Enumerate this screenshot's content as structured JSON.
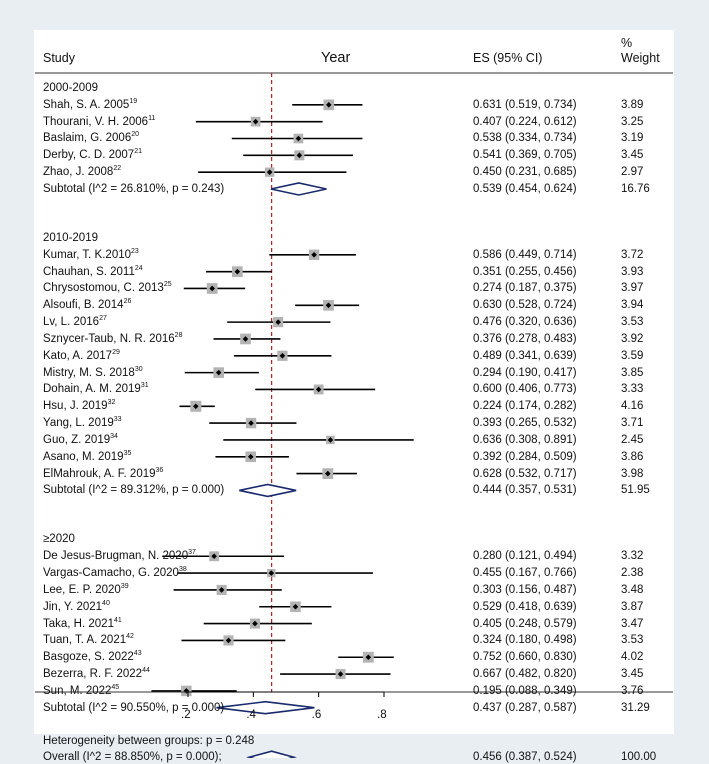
{
  "headers": {
    "study": "Study",
    "year": "Year",
    "es": "ES (95% CI)",
    "weight_line1": "%",
    "weight_line2": "Weight"
  },
  "axis": {
    "ticks": [
      0.2,
      0.4,
      0.6,
      0.8
    ],
    "tick_labels": [
      ".2",
      ".4",
      ".6",
      ".8"
    ],
    "reference_line": 0.456
  },
  "heterogeneity_between_groups": "Heterogeneity between groups: p = 0.248",
  "colors": {
    "background": "#e8eef2",
    "panel": "#ffffff",
    "diamond": "#1a2a6c",
    "dashed_line": "#b22222",
    "box": "#b3b3b3",
    "marker": "#000000"
  },
  "chart_data": {
    "type": "forest",
    "xlim": [
      0.15,
      0.92
    ],
    "pooled_estimate": 0.456,
    "groups": [
      {
        "label": "2000-2009",
        "studies": [
          {
            "name": "Shah, S. A. 2005",
            "ref": "19",
            "es": 0.631,
            "lo": 0.519,
            "hi": 0.734,
            "es_text": "0.631 (0.519, 0.734)",
            "weight": "3.89"
          },
          {
            "name": "Thourani, V. H. 2006",
            "ref": "11",
            "es": 0.407,
            "lo": 0.224,
            "hi": 0.612,
            "es_text": "0.407 (0.224, 0.612)",
            "weight": "3.25"
          },
          {
            "name": "Baslaim, G. 2006",
            "ref": "20",
            "es": 0.538,
            "lo": 0.334,
            "hi": 0.734,
            "es_text": "0.538 (0.334, 0.734)",
            "weight": "3.19"
          },
          {
            "name": "Derby, C. D. 2007",
            "ref": "21",
            "es": 0.541,
            "lo": 0.369,
            "hi": 0.705,
            "es_text": "0.541 (0.369, 0.705)",
            "weight": "3.45"
          },
          {
            "name": "Zhao, J. 2008",
            "ref": "22",
            "es": 0.45,
            "lo": 0.231,
            "hi": 0.685,
            "es_text": "0.450 (0.231, 0.685)",
            "weight": "2.97"
          }
        ],
        "subtotal": {
          "label": "Subtotal  (I^2 = 26.810%, p = 0.243)",
          "es": 0.539,
          "lo": 0.454,
          "hi": 0.624,
          "es_text": "0.539 (0.454, 0.624)",
          "weight": "16.76"
        }
      },
      {
        "label": "2010-2019",
        "studies": [
          {
            "name": "Kumar, T. K.2010",
            "ref": "23",
            "es": 0.586,
            "lo": 0.449,
            "hi": 0.714,
            "es_text": "0.586 (0.449, 0.714)",
            "weight": "3.72"
          },
          {
            "name": "Chauhan, S. 2011",
            "ref": "24",
            "es": 0.351,
            "lo": 0.255,
            "hi": 0.456,
            "es_text": "0.351 (0.255, 0.456)",
            "weight": "3.93"
          },
          {
            "name": "Chrysostomou, C. 2013",
            "ref": "25",
            "es": 0.274,
            "lo": 0.187,
            "hi": 0.375,
            "es_text": "0.274 (0.187, 0.375)",
            "weight": "3.97"
          },
          {
            "name": "Alsoufi, B. 2014",
            "ref": "26",
            "es": 0.63,
            "lo": 0.528,
            "hi": 0.724,
            "es_text": "0.630 (0.528, 0.724)",
            "weight": "3.94"
          },
          {
            "name": "Lv, L. 2016",
            "ref": "27",
            "es": 0.476,
            "lo": 0.32,
            "hi": 0.636,
            "es_text": "0.476 (0.320, 0.636)",
            "weight": "3.53"
          },
          {
            "name": "Sznycer-Taub, N. R. 2016",
            "ref": "28",
            "es": 0.376,
            "lo": 0.278,
            "hi": 0.483,
            "es_text": "0.376 (0.278, 0.483)",
            "weight": "3.92"
          },
          {
            "name": "Kato, A. 2017",
            "ref": "29",
            "es": 0.489,
            "lo": 0.341,
            "hi": 0.639,
            "es_text": "0.489 (0.341, 0.639)",
            "weight": "3.59"
          },
          {
            "name": "Mistry, M. S. 2018",
            "ref": "30",
            "es": 0.294,
            "lo": 0.19,
            "hi": 0.417,
            "es_text": "0.294 (0.190, 0.417)",
            "weight": "3.85"
          },
          {
            "name": "Dohain, A. M. 2019",
            "ref": "31",
            "es": 0.6,
            "lo": 0.406,
            "hi": 0.773,
            "es_text": "0.600 (0.406, 0.773)",
            "weight": "3.33"
          },
          {
            "name": "Hsu, J.  2019",
            "ref": "32",
            "es": 0.224,
            "lo": 0.174,
            "hi": 0.282,
            "es_text": "0.224 (0.174, 0.282)",
            "weight": "4.16"
          },
          {
            "name": "Yang, L. 2019",
            "ref": "33",
            "es": 0.393,
            "lo": 0.265,
            "hi": 0.532,
            "es_text": "0.393 (0.265, 0.532)",
            "weight": "3.71"
          },
          {
            "name": "Guo, Z. 2019",
            "ref": "34",
            "es": 0.636,
            "lo": 0.308,
            "hi": 0.891,
            "es_text": "0.636 (0.308, 0.891)",
            "weight": "2.45"
          },
          {
            "name": "Asano, M. 2019",
            "ref": "35",
            "es": 0.392,
            "lo": 0.284,
            "hi": 0.509,
            "es_text": "0.392 (0.284, 0.509)",
            "weight": "3.86"
          },
          {
            "name": "ElMahrouk, A. F. 2019",
            "ref": "36",
            "es": 0.628,
            "lo": 0.532,
            "hi": 0.717,
            "es_text": "0.628 (0.532, 0.717)",
            "weight": "3.98"
          }
        ],
        "subtotal": {
          "label": "Subtotal  (I^2 = 89.312%, p = 0.000)",
          "es": 0.444,
          "lo": 0.357,
          "hi": 0.531,
          "es_text": "0.444 (0.357, 0.531)",
          "weight": "51.95"
        }
      },
      {
        "label": "≥2020",
        "studies": [
          {
            "name": "De Jesus-Brugman, N. 2020",
            "ref": "37",
            "es": 0.28,
            "lo": 0.121,
            "hi": 0.494,
            "es_text": "0.280 (0.121, 0.494)",
            "weight": "3.32"
          },
          {
            "name": "Vargas-Camacho, G. 2020",
            "ref": "38",
            "es": 0.455,
            "lo": 0.167,
            "hi": 0.766,
            "es_text": "0.455 (0.167, 0.766)",
            "weight": "2.38"
          },
          {
            "name": "Lee, E. P. 2020",
            "ref": "39",
            "es": 0.303,
            "lo": 0.156,
            "hi": 0.487,
            "es_text": "0.303 (0.156, 0.487)",
            "weight": "3.48"
          },
          {
            "name": "Jin, Y. 2021",
            "ref": "40",
            "es": 0.529,
            "lo": 0.418,
            "hi": 0.639,
            "es_text": "0.529 (0.418, 0.639)",
            "weight": "3.87"
          },
          {
            "name": "Taka, H. 2021",
            "ref": "41",
            "es": 0.405,
            "lo": 0.248,
            "hi": 0.579,
            "es_text": "0.405 (0.248, 0.579)",
            "weight": "3.47"
          },
          {
            "name": "Tuan, T. A. 2021",
            "ref": "42",
            "es": 0.324,
            "lo": 0.18,
            "hi": 0.498,
            "es_text": "0.324 (0.180, 0.498)",
            "weight": "3.53"
          },
          {
            "name": "Basgoze, S. 2022",
            "ref": "43",
            "es": 0.752,
            "lo": 0.66,
            "hi": 0.83,
            "es_text": "0.752 (0.660, 0.830)",
            "weight": "4.02"
          },
          {
            "name": "Bezerra, R. F. 2022",
            "ref": "44",
            "es": 0.667,
            "lo": 0.482,
            "hi": 0.82,
            "es_text": "0.667 (0.482, 0.820)",
            "weight": "3.45"
          },
          {
            "name": "Sun, M. 2022",
            "ref": "45",
            "es": 0.195,
            "lo": 0.088,
            "hi": 0.349,
            "es_text": "0.195 (0.088, 0.349)",
            "weight": "3.76"
          }
        ],
        "subtotal": {
          "label": "Subtotal  (I^2 = 90.550%, p = 0.000)",
          "es": 0.437,
          "lo": 0.287,
          "hi": 0.587,
          "es_text": "0.437 (0.287, 0.587)",
          "weight": "31.29"
        }
      }
    ],
    "overall": {
      "label": "Overall  (I^2 = 88.850%, p = 0.000);",
      "es": 0.456,
      "lo": 0.387,
      "hi": 0.524,
      "es_text": "0.456 (0.387, 0.524)",
      "weight": "100.00"
    }
  }
}
